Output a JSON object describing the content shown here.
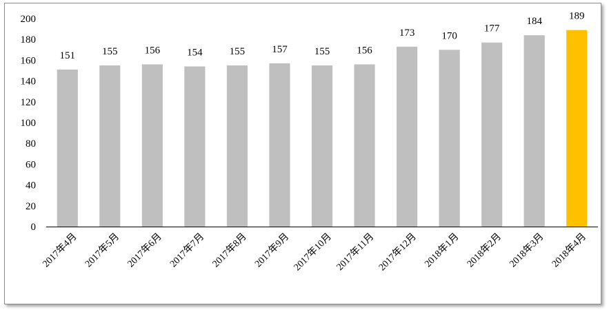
{
  "chart_data": {
    "type": "bar",
    "categories": [
      "2017年4月",
      "2017年5月",
      "2017年6月",
      "2017年7月",
      "2017年8月",
      "2017年9月",
      "2017年10月",
      "2017年11月",
      "2017年12月",
      "2018年1月",
      "2018年2月",
      "2018年3月",
      "2018年4月"
    ],
    "values": [
      151,
      155,
      156,
      154,
      155,
      157,
      155,
      156,
      173,
      170,
      177,
      184,
      189
    ],
    "yticks": [
      0,
      20,
      40,
      60,
      80,
      100,
      120,
      140,
      160,
      180,
      200
    ],
    "ylim": [
      0,
      200
    ],
    "title": "",
    "xlabel": "",
    "ylabel": "",
    "grid": false,
    "legend": "none",
    "colors": {
      "bar": "#bfbfbf",
      "highlight": "#ffc000",
      "axis": "#000000"
    },
    "highlight_index": 12
  }
}
